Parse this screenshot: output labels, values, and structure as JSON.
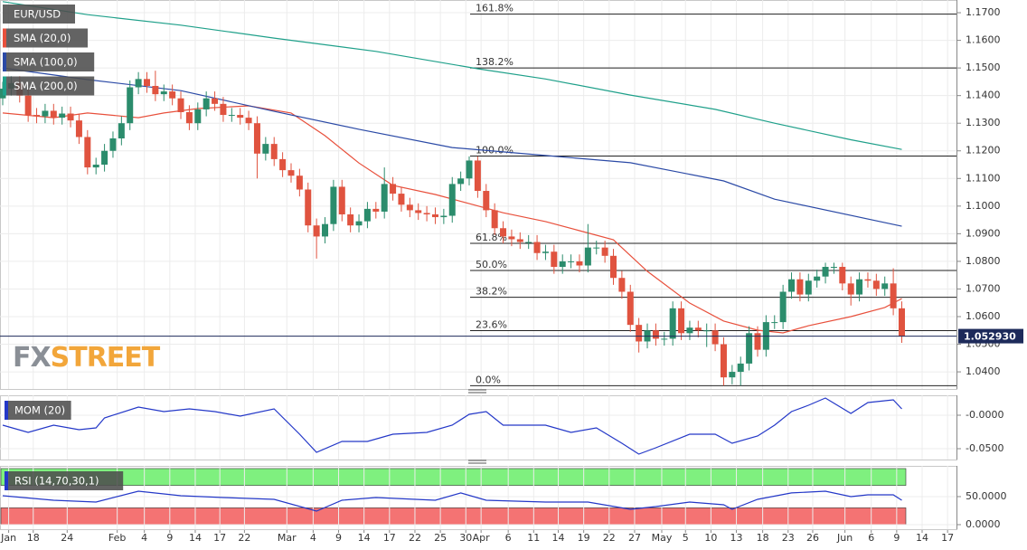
{
  "watermark": {
    "fx": "FX",
    "street": "STREET"
  },
  "chart_data": [
    {
      "type": "candlestick",
      "symbol": "EUR/USD",
      "up_color": "#2b8c6c",
      "down_color": "#e0533f",
      "grid": true,
      "open": [
        1.139,
        1.1425,
        1.1445,
        1.14,
        1.133,
        1.1325,
        1.1345,
        1.132,
        1.1335,
        1.131,
        1.125,
        1.114,
        1.115,
        1.12,
        1.1245,
        1.13,
        1.143,
        1.146,
        1.1435,
        1.1405,
        1.1415,
        1.139,
        1.134,
        1.13,
        1.135,
        1.139,
        1.137,
        1.133,
        1.133,
        1.132,
        1.13,
        1.119,
        1.1225,
        1.117,
        1.113,
        1.111,
        1.106,
        1.093,
        1.089,
        1.0935,
        1.107,
        1.097,
        1.093,
        1.0945,
        1.099,
        1.098,
        1.108,
        1.1045,
        1.1005,
        1.0985,
        1.0975,
        1.097,
        1.096,
        1.0965,
        1.108,
        1.11,
        1.1165,
        1.1055,
        1.0985,
        1.092,
        1.089,
        1.088,
        1.087,
        1.087,
        1.083,
        1.0835,
        1.078,
        1.08,
        1.08,
        1.0785,
        1.085,
        1.085,
        1.082,
        1.074,
        1.069,
        1.057,
        1.051,
        1.055,
        1.052,
        1.052,
        1.063,
        1.054,
        1.056,
        1.055,
        1.055,
        1.05,
        1.038,
        1.04,
        1.043,
        1.054,
        1.048,
        1.058,
        1.058,
        1.069,
        1.0735,
        1.068,
        1.073,
        1.0745,
        1.078,
        1.078,
        1.072,
        1.068,
        1.0735,
        1.073,
        1.07,
        1.072,
        1.063
      ],
      "high": [
        1.145,
        1.147,
        1.147,
        1.1425,
        1.1355,
        1.137,
        1.137,
        1.136,
        1.136,
        1.1335,
        1.1275,
        1.1175,
        1.1225,
        1.127,
        1.1325,
        1.1455,
        1.1485,
        1.1485,
        1.149,
        1.144,
        1.144,
        1.1415,
        1.1365,
        1.1375,
        1.1415,
        1.1415,
        1.1395,
        1.1355,
        1.1355,
        1.1345,
        1.1325,
        1.125,
        1.125,
        1.1195,
        1.1155,
        1.1135,
        1.1085,
        1.0955,
        1.096,
        1.1095,
        1.1095,
        1.0995,
        1.097,
        1.1015,
        1.1015,
        1.114,
        1.1105,
        1.107,
        1.103,
        1.101,
        1.1,
        1.0995,
        1.099,
        1.1105,
        1.1125,
        1.118,
        1.118,
        1.108,
        1.101,
        1.0945,
        1.0915,
        1.0905,
        1.0895,
        1.0895,
        1.086,
        1.086,
        1.0825,
        1.0825,
        1.0825,
        1.0935,
        1.0875,
        1.0875,
        1.0845,
        1.0765,
        1.0715,
        1.0595,
        1.0575,
        1.0575,
        1.0545,
        1.0655,
        1.0655,
        1.0585,
        1.0585,
        1.0575,
        1.0575,
        1.0525,
        1.0425,
        1.0455,
        1.0565,
        1.0565,
        1.0605,
        1.0605,
        1.0715,
        1.076,
        1.076,
        1.0755,
        1.077,
        1.0795,
        1.0795,
        1.0795,
        1.0745,
        1.076,
        1.076,
        1.0755,
        1.0745,
        1.0775,
        1.0655
      ],
      "low": [
        1.1365,
        1.14,
        1.1375,
        1.1305,
        1.13,
        1.13,
        1.1295,
        1.1295,
        1.1285,
        1.1225,
        1.1115,
        1.1115,
        1.1125,
        1.1175,
        1.122,
        1.1275,
        1.1405,
        1.141,
        1.138,
        1.138,
        1.1365,
        1.1315,
        1.1275,
        1.1275,
        1.1325,
        1.1345,
        1.1305,
        1.1305,
        1.1295,
        1.1275,
        1.11,
        1.1165,
        1.1145,
        1.1105,
        1.1085,
        1.1035,
        1.0905,
        1.081,
        1.0865,
        1.091,
        1.0945,
        1.0905,
        1.0905,
        1.092,
        1.0955,
        1.0955,
        1.102,
        1.098,
        1.096,
        1.095,
        1.0945,
        1.0935,
        1.0935,
        1.094,
        1.1055,
        1.1075,
        1.103,
        1.096,
        1.0895,
        1.0865,
        1.0855,
        1.0845,
        1.0845,
        1.0805,
        1.0805,
        1.0755,
        1.0755,
        1.0775,
        1.076,
        1.076,
        1.0825,
        1.0795,
        1.0715,
        1.0665,
        1.0545,
        1.047,
        1.0485,
        1.0495,
        1.0495,
        1.0495,
        1.0515,
        1.0515,
        1.0525,
        1.049,
        1.0475,
        1.035,
        1.0355,
        1.035,
        1.0405,
        1.0455,
        1.0455,
        1.0555,
        1.0555,
        1.0665,
        1.0655,
        1.0655,
        1.0705,
        1.072,
        1.0755,
        1.0695,
        1.064,
        1.0655,
        1.0705,
        1.0675,
        1.0675,
        1.0605,
        1.0505
      ],
      "close": [
        1.1425,
        1.1445,
        1.14,
        1.133,
        1.1325,
        1.1345,
        1.132,
        1.1335,
        1.131,
        1.125,
        1.114,
        1.115,
        1.12,
        1.1245,
        1.13,
        1.143,
        1.146,
        1.1435,
        1.1405,
        1.1415,
        1.139,
        1.134,
        1.13,
        1.135,
        1.139,
        1.137,
        1.133,
        1.133,
        1.132,
        1.13,
        1.119,
        1.1225,
        1.117,
        1.113,
        1.111,
        1.106,
        1.093,
        1.089,
        1.0935,
        1.107,
        1.097,
        1.093,
        1.0945,
        1.099,
        1.098,
        1.108,
        1.1045,
        1.1005,
        1.0985,
        1.0975,
        1.097,
        1.096,
        1.0965,
        1.108,
        1.11,
        1.1165,
        1.1055,
        1.0985,
        1.092,
        1.089,
        1.088,
        1.087,
        1.087,
        1.083,
        1.0835,
        1.078,
        1.08,
        1.08,
        1.0785,
        1.085,
        1.085,
        1.082,
        1.074,
        1.069,
        1.057,
        1.051,
        1.055,
        1.052,
        1.052,
        1.063,
        1.054,
        1.056,
        1.055,
        1.055,
        1.05,
        1.038,
        1.04,
        1.043,
        1.054,
        1.048,
        1.058,
        1.058,
        1.069,
        1.0735,
        1.068,
        1.073,
        1.0745,
        1.078,
        1.078,
        1.072,
        1.068,
        1.0735,
        1.073,
        1.07,
        1.072,
        1.063,
        1.0529
      ],
      "series": [
        {
          "name": "SMA (20,0)",
          "color": "#e8503c",
          "x": [
            0,
            6,
            10,
            16,
            19,
            23,
            29,
            34,
            38,
            42,
            46,
            51,
            55,
            59,
            64,
            68,
            72,
            76,
            81,
            85,
            89,
            92,
            95,
            100,
            104,
            106
          ],
          "values": [
            1.1337,
            1.132,
            1.1337,
            1.132,
            1.1337,
            1.1353,
            1.1363,
            1.1337,
            1.1255,
            1.1156,
            1.1075,
            1.1042,
            1.1009,
            1.0976,
            1.0944,
            1.0911,
            1.0878,
            1.0764,
            1.0649,
            1.0584,
            1.0551,
            1.0541,
            1.0567,
            1.06,
            1.0633,
            1.0665
          ]
        },
        {
          "name": "SMA (100,0)",
          "color": "#2b4aa6",
          "x": [
            0,
            10,
            21,
            32,
            42,
            53,
            64,
            74,
            85,
            91,
            106
          ],
          "values": [
            1.15,
            1.1458,
            1.1418,
            1.1343,
            1.1278,
            1.1212,
            1.1183,
            1.1157,
            1.1091,
            1.1025,
            1.0927
          ]
        },
        {
          "name": "SMA (200,0)",
          "color": "#1fa08a",
          "x": [
            0,
            10,
            21,
            32,
            44,
            56,
            64,
            74,
            84,
            91,
            100,
            106
          ],
          "values": [
            1.174,
            1.1693,
            1.1655,
            1.1608,
            1.156,
            1.1497,
            1.146,
            1.1402,
            1.135,
            1.13,
            1.124,
            1.1205
          ]
        }
      ],
      "fib_levels": [
        {
          "label": "161.8%",
          "value": 1.1695
        },
        {
          "label": "138.2%",
          "value": 1.15
        },
        {
          "label": "100.0%",
          "value": 1.1181
        },
        {
          "label": "61.8%",
          "value": 1.0865
        },
        {
          "label": "50.0%",
          "value": 1.0767
        },
        {
          "label": "38.2%",
          "value": 1.067
        },
        {
          "label": "23.6%",
          "value": 1.0549
        },
        {
          "label": "0.0%",
          "value": 1.035
        }
      ],
      "last_price": {
        "value": 1.05293,
        "label": "1.052930",
        "color": "#1d2a5a"
      },
      "ylim": [
        1.0338,
        1.1746
      ],
      "yticks": [
        {
          "value": 1.17,
          "label": "1.1700"
        },
        {
          "value": 1.16,
          "label": "1.1600"
        },
        {
          "value": 1.15,
          "label": "1.1500"
        },
        {
          "value": 1.14,
          "label": "1.1400"
        },
        {
          "value": 1.13,
          "label": "1.1300"
        },
        {
          "value": 1.12,
          "label": "1.1200"
        },
        {
          "value": 1.11,
          "label": "1.1100"
        },
        {
          "value": 1.1,
          "label": "1.1000"
        },
        {
          "value": 1.09,
          "label": "1.0900"
        },
        {
          "value": 1.08,
          "label": "1.0800"
        },
        {
          "value": 1.07,
          "label": "1.0700"
        },
        {
          "value": 1.06,
          "label": "1.0600"
        },
        {
          "value": 1.05,
          "label": "1.0500"
        },
        {
          "value": 1.04,
          "label": "1.0400"
        }
      ],
      "xlim": [
        -0.32,
        112.45
      ],
      "xticks": [
        {
          "value": 0.7,
          "label": "Jan"
        },
        {
          "value": 3.6,
          "label": "18"
        },
        {
          "value": 7.6,
          "label": "24"
        },
        {
          "value": 13.5,
          "label": "Feb"
        },
        {
          "value": 16.7,
          "label": "4"
        },
        {
          "value": 19.7,
          "label": "9"
        },
        {
          "value": 22.7,
          "label": "14"
        },
        {
          "value": 25.6,
          "label": "17"
        },
        {
          "value": 28.5,
          "label": "22"
        },
        {
          "value": 33.5,
          "label": "Mar"
        },
        {
          "value": 36.6,
          "label": "4"
        },
        {
          "value": 39.6,
          "label": "9"
        },
        {
          "value": 42.6,
          "label": "14"
        },
        {
          "value": 45.6,
          "label": "17"
        },
        {
          "value": 48.6,
          "label": "22"
        },
        {
          "value": 51.6,
          "label": "25"
        },
        {
          "value": 54.6,
          "label": "30"
        },
        {
          "value": 56.4,
          "label": "Apr"
        },
        {
          "value": 59.6,
          "label": "6"
        },
        {
          "value": 62.6,
          "label": "11"
        },
        {
          "value": 65.5,
          "label": "14"
        },
        {
          "value": 68.5,
          "label": "19"
        },
        {
          "value": 71.5,
          "label": "22"
        },
        {
          "value": 74.5,
          "label": "27"
        },
        {
          "value": 77.7,
          "label": "May"
        },
        {
          "value": 80.5,
          "label": "5"
        },
        {
          "value": 83.5,
          "label": "10"
        },
        {
          "value": 86.5,
          "label": "13"
        },
        {
          "value": 89.6,
          "label": "18"
        },
        {
          "value": 92.6,
          "label": "23"
        },
        {
          "value": 95.5,
          "label": "26"
        },
        {
          "value": 99.3,
          "label": "Jun"
        },
        {
          "value": 102.4,
          "label": "6"
        },
        {
          "value": 105.4,
          "label": "9"
        },
        {
          "value": 108.4,
          "label": "14"
        },
        {
          "value": 111.4,
          "label": "17"
        }
      ]
    },
    {
      "type": "line",
      "title": "MOM (20)",
      "grid": true,
      "series": [
        {
          "color": "#2438c8",
          "x": [
            0,
            3,
            6,
            9,
            11,
            12,
            16,
            19,
            22,
            25,
            28,
            32,
            35,
            37,
            40,
            43,
            46,
            50,
            53,
            55,
            57,
            59,
            64,
            67,
            70,
            73,
            75,
            77,
            81,
            84,
            86,
            89,
            91,
            93,
            95,
            97,
            100,
            102,
            105,
            106
          ],
          "values": [
            -0.0149,
            -0.0257,
            -0.0149,
            -0.0216,
            -0.0189,
            -0.0041,
            0.0122,
            0.0054,
            0.0095,
            0.0054,
            -0.0014,
            0.0095,
            -0.0284,
            -0.0554,
            -0.0392,
            -0.0392,
            -0.0284,
            -0.0257,
            -0.0149,
            0.0014,
            0.0054,
            -0.0149,
            -0.0149,
            -0.0257,
            -0.0189,
            -0.0419,
            -0.0581,
            -0.0486,
            -0.0284,
            -0.0284,
            -0.0419,
            -0.0311,
            -0.0149,
            0.0054,
            0.0149,
            0.0257,
            0.0027,
            0.0189,
            0.023,
            0.0095
          ]
        }
      ],
      "ylim": [
        -0.0662,
        0.0297
      ],
      "yticks": [
        {
          "value": 0,
          "label": "-0.0000"
        },
        {
          "value": -0.05,
          "label": "-0.0500"
        }
      ]
    },
    {
      "type": "line",
      "title": "RSI (14,70,30,1)",
      "grid": true,
      "bands": [
        {
          "from": 70,
          "to": 100,
          "color": "#7ff07f"
        },
        {
          "from": 0,
          "to": 30,
          "color": "#f47373"
        }
      ],
      "series": [
        {
          "color": "#2438c8",
          "x": [
            0,
            6,
            11,
            16,
            21,
            26,
            32,
            37,
            40,
            44,
            51,
            54,
            57,
            64,
            69,
            74,
            77,
            81,
            85,
            86,
            89,
            93,
            97,
            100,
            102,
            105,
            106
          ],
          "values": [
            51.6,
            43.5,
            40.3,
            59.7,
            51.6,
            48.4,
            45.2,
            24.2,
            43.5,
            48.4,
            43.5,
            56.5,
            43.5,
            40.3,
            40.3,
            27.4,
            32.3,
            40.3,
            35.5,
            27.4,
            45.2,
            56.5,
            59.7,
            50.0,
            53.2,
            53.2,
            43.5
          ]
        }
      ],
      "ylim": [
        -8.1,
        104.8
      ],
      "yticks": [
        {
          "value": 50,
          "label": "50.0000"
        },
        {
          "value": 0,
          "label": "0.0000"
        }
      ]
    }
  ]
}
